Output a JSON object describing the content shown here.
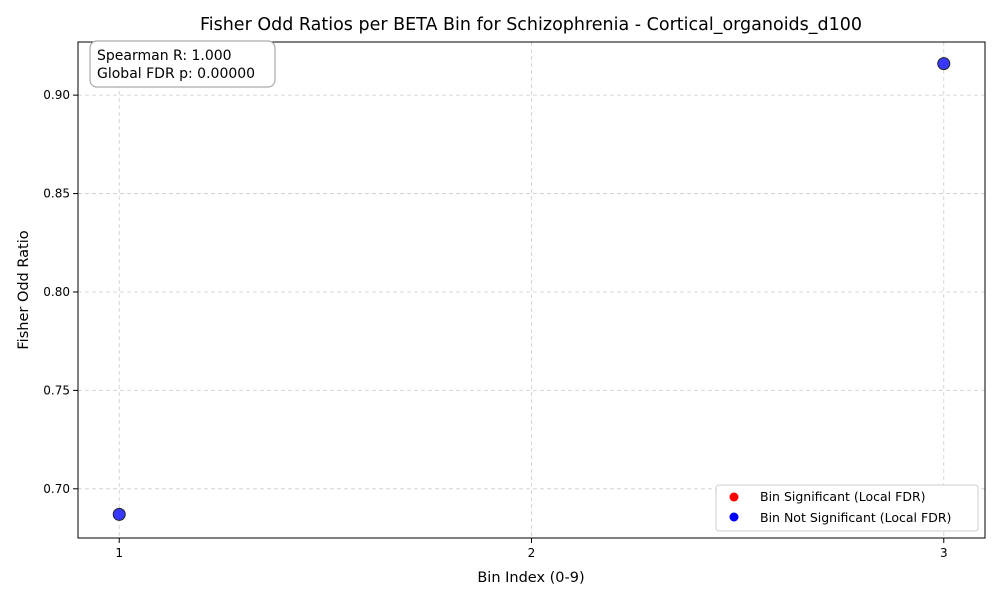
{
  "chart_data": {
    "type": "scatter",
    "title": "Fisher Odd Ratios per BETA Bin for Schizophrenia - Cortical_organoids_d100",
    "xlabel": "Bin Index (0-9)",
    "ylabel": "Fisher Odd Ratio",
    "xlim": [
      0.9,
      3.1
    ],
    "ylim": [
      0.675,
      0.927
    ],
    "xticks": [
      1,
      2,
      3
    ],
    "xtick_labels": [
      "1",
      "2",
      "3"
    ],
    "yticks": [
      0.7,
      0.75,
      0.8,
      0.85,
      0.9
    ],
    "ytick_labels": [
      "0.70",
      "0.75",
      "0.80",
      "0.85",
      "0.90"
    ],
    "grid": true,
    "legend_position": "lower-right",
    "series": [
      {
        "name": "Bin Significant (Local FDR)",
        "color": "#ff0000",
        "points": []
      },
      {
        "name": "Bin Not Significant (Local FDR)",
        "color": "#0000ff",
        "points": [
          {
            "x": 1,
            "y": 0.687
          },
          {
            "x": 3,
            "y": 0.916
          }
        ]
      }
    ],
    "annotation": {
      "lines": [
        "Spearman R: 1.000",
        "Global FDR p: 0.00000"
      ],
      "position": "top-left"
    }
  }
}
